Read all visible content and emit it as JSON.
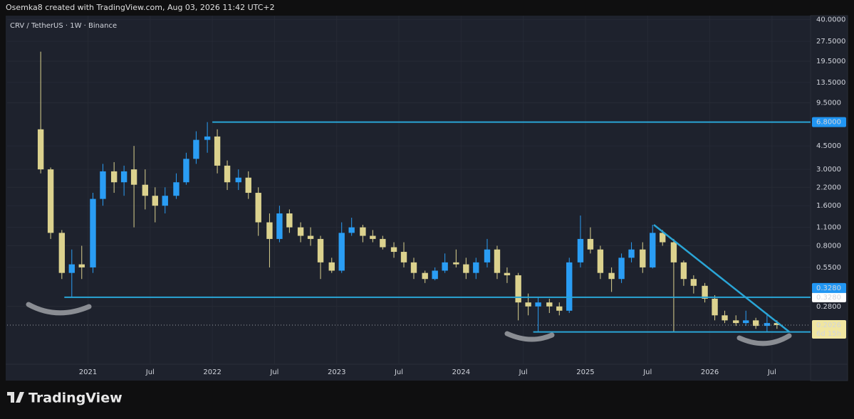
{
  "header": "Osemka8 created with TradingView.com, Aug 03, 2026 11:42 UTC+2",
  "footer": "TradingView",
  "chart_data": {
    "type": "candlestick",
    "title": "CRV / TetherUS · 1W · Binance",
    "log_scale": true,
    "grid": true,
    "up_color": "#2a9df4",
    "down_color": "#dcd28e",
    "xlim": [
      2020.35,
      2026.81
    ],
    "ylim": [
      0.103,
      42.9
    ],
    "xticks": [
      {
        "value": 2021,
        "label": "2021"
      },
      {
        "value": 2021.5,
        "label": "Jul"
      },
      {
        "value": 2022,
        "label": "2022"
      },
      {
        "value": 2022.5,
        "label": "Jul"
      },
      {
        "value": 2023,
        "label": "2023"
      },
      {
        "value": 2023.5,
        "label": "Jul"
      },
      {
        "value": 2024,
        "label": "2024"
      },
      {
        "value": 2024.5,
        "label": "Jul"
      },
      {
        "value": 2025,
        "label": "2025"
      },
      {
        "value": 2025.5,
        "label": "Jul"
      },
      {
        "value": 2026,
        "label": "2026"
      },
      {
        "value": 2026.5,
        "label": "Jul"
      }
    ],
    "yticks": [
      {
        "value": 40,
        "label": "40.0000"
      },
      {
        "value": 27.5,
        "label": "27.5000"
      },
      {
        "value": 19.5,
        "label": "19.5000"
      },
      {
        "value": 13.5,
        "label": "13.5000"
      },
      {
        "value": 9.5,
        "label": "9.5000"
      },
      {
        "value": 4.5,
        "label": "4.5000"
      },
      {
        "value": 3,
        "label": "3.0000"
      },
      {
        "value": 2.2,
        "label": "2.2000"
      },
      {
        "value": 1.6,
        "label": "1.6000"
      },
      {
        "value": 1.1,
        "label": "1.1000"
      },
      {
        "value": 0.8,
        "label": "0.8000"
      },
      {
        "value": 0.55,
        "label": "0.5500"
      },
      {
        "value": 0.28,
        "label": "0.2800"
      }
    ],
    "x": [
      2020.62,
      2020.7,
      2020.79,
      2020.87,
      2020.95,
      2021.04,
      2021.12,
      2021.21,
      2021.29,
      2021.37,
      2021.46,
      2021.54,
      2021.62,
      2021.71,
      2021.79,
      2021.87,
      2021.96,
      2022.04,
      2022.12,
      2022.21,
      2022.29,
      2022.37,
      2022.46,
      2022.54,
      2022.62,
      2022.71,
      2022.79,
      2022.87,
      2022.96,
      2023.04,
      2023.12,
      2023.21,
      2023.29,
      2023.37,
      2023.46,
      2023.54,
      2023.62,
      2023.71,
      2023.79,
      2023.87,
      2023.96,
      2024.04,
      2024.12,
      2024.21,
      2024.29,
      2024.37,
      2024.46,
      2024.54,
      2024.62,
      2024.71,
      2024.79,
      2024.87,
      2024.96,
      2025.04,
      2025.12,
      2025.21,
      2025.29,
      2025.37,
      2025.46,
      2025.54,
      2025.62,
      2025.71,
      2025.79,
      2025.87,
      2025.96,
      2026.04,
      2026.12,
      2026.21,
      2026.29,
      2026.37,
      2026.46,
      2026.54
    ],
    "open": [
      6.0,
      3.0,
      1.0,
      0.5,
      0.58,
      0.55,
      1.8,
      2.9,
      2.4,
      3.0,
      2.3,
      1.9,
      1.6,
      1.9,
      2.4,
      3.6,
      5.0,
      5.3,
      3.2,
      2.4,
      2.6,
      2.0,
      1.2,
      0.9,
      1.4,
      1.1,
      0.95,
      0.9,
      0.6,
      0.52,
      1.0,
      1.1,
      0.95,
      0.9,
      0.78,
      0.72,
      0.6,
      0.5,
      0.45,
      0.52,
      0.6,
      0.58,
      0.5,
      0.6,
      0.75,
      0.5,
      0.48,
      0.3,
      0.28,
      0.3,
      0.28,
      0.26,
      0.6,
      0.9,
      0.75,
      0.5,
      0.45,
      0.65,
      0.75,
      0.55,
      1.0,
      0.85,
      0.6,
      0.45,
      0.4,
      0.32,
      0.24,
      0.22,
      0.21,
      0.22,
      0.2,
      0.21
    ],
    "high": [
      23.0,
      3.1,
      1.05,
      0.75,
      0.8,
      2.0,
      3.3,
      3.4,
      3.2,
      4.5,
      3.0,
      2.2,
      2.2,
      2.8,
      4.0,
      5.8,
      6.8,
      6.0,
      3.5,
      3.0,
      2.9,
      2.2,
      1.4,
      1.6,
      1.5,
      1.2,
      1.1,
      0.95,
      0.65,
      1.2,
      1.3,
      1.15,
      1.05,
      0.95,
      0.85,
      0.85,
      0.65,
      0.52,
      0.55,
      0.7,
      0.75,
      0.65,
      0.65,
      0.9,
      0.8,
      0.55,
      0.5,
      0.35,
      0.33,
      0.32,
      0.3,
      0.65,
      1.35,
      1.1,
      0.8,
      0.55,
      0.7,
      0.85,
      0.85,
      1.15,
      1.05,
      0.9,
      0.62,
      0.48,
      0.42,
      0.34,
      0.26,
      0.24,
      0.26,
      0.23,
      0.25,
      0.22
    ],
    "low": [
      2.8,
      0.9,
      0.45,
      0.33,
      0.45,
      0.5,
      1.6,
      2.0,
      1.9,
      1.1,
      1.5,
      1.2,
      1.4,
      1.8,
      2.3,
      3.3,
      4.0,
      2.8,
      2.1,
      2.1,
      1.8,
      0.95,
      0.55,
      0.85,
      1.0,
      0.85,
      0.8,
      0.45,
      0.5,
      0.5,
      0.95,
      0.85,
      0.85,
      0.75,
      0.65,
      0.55,
      0.45,
      0.42,
      0.44,
      0.5,
      0.55,
      0.45,
      0.45,
      0.55,
      0.45,
      0.42,
      0.22,
      0.24,
      0.18,
      0.25,
      0.24,
      0.25,
      0.55,
      0.7,
      0.45,
      0.36,
      0.42,
      0.6,
      0.5,
      0.54,
      0.8,
      0.18,
      0.4,
      0.35,
      0.3,
      0.22,
      0.21,
      0.2,
      0.2,
      0.19,
      0.18,
      0.19
    ],
    "close": [
      3.0,
      1.0,
      0.5,
      0.58,
      0.55,
      1.8,
      2.9,
      2.4,
      2.9,
      2.3,
      1.9,
      1.6,
      1.9,
      2.4,
      3.6,
      5.0,
      5.3,
      3.2,
      2.4,
      2.6,
      2.0,
      1.2,
      0.9,
      1.4,
      1.1,
      0.95,
      0.9,
      0.6,
      0.52,
      1.0,
      1.1,
      0.95,
      0.9,
      0.78,
      0.72,
      0.6,
      0.5,
      0.45,
      0.52,
      0.6,
      0.58,
      0.5,
      0.6,
      0.75,
      0.5,
      0.48,
      0.3,
      0.28,
      0.3,
      0.28,
      0.26,
      0.6,
      0.9,
      0.75,
      0.5,
      0.45,
      0.65,
      0.75,
      0.55,
      1.0,
      0.85,
      0.6,
      0.45,
      0.4,
      0.32,
      0.24,
      0.22,
      0.21,
      0.22,
      0.2,
      0.21,
      0.2026
    ],
    "levels": [
      {
        "value": 6.8,
        "label": "6.8000",
        "from": 2022.0
      },
      {
        "value": 0.328,
        "label": "0.3280",
        "from": 2020.81
      },
      {
        "value": 0.1801,
        "label": "0.1801",
        "from": 2024.58
      }
    ],
    "extra_tag": {
      "value": 0.328,
      "label": "0.3280"
    },
    "trendline": {
      "x": [
        2025.55,
        2026.64
      ],
      "y": [
        1.15,
        0.18
      ]
    },
    "last_price": {
      "value": 0.2026,
      "label": "0.2026",
      "countdown": "6d 15h"
    }
  }
}
